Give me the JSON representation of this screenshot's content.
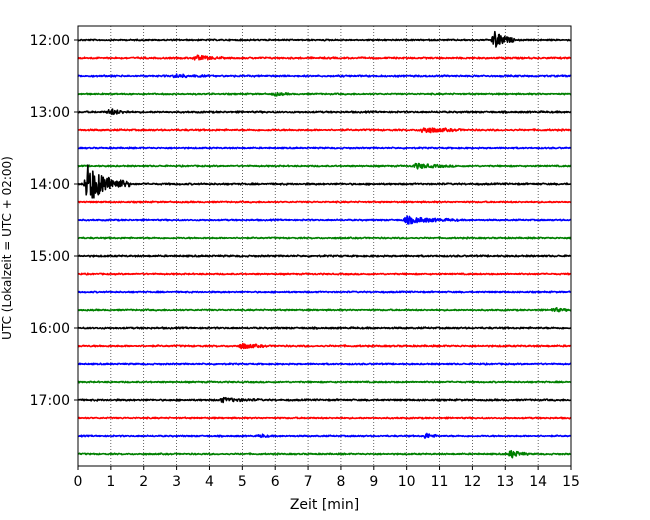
{
  "chart_data": {
    "type": "line",
    "title": "",
    "xlabel": "Zeit  [min]",
    "ylabel": "UTC (Lokalzeit = UTC + 02:00)",
    "xlim": [
      0,
      15
    ],
    "x_ticks": [
      "0",
      "1",
      "2",
      "3",
      "4",
      "5",
      "6",
      "7",
      "8",
      "9",
      "10",
      "11",
      "12",
      "13",
      "14",
      "15"
    ],
    "y_ticks": [
      "12:00",
      "13:00",
      "14:00",
      "15:00",
      "16:00",
      "17:00"
    ],
    "grid": "vertical dotted",
    "colors": [
      "#000000",
      "#ff0000",
      "#0000ff",
      "#008000"
    ],
    "rows": [
      {
        "utc": "12:00",
        "color": "#000000",
        "noise": 0.6,
        "events": [
          {
            "t": 12.7,
            "amp": 9,
            "dur": 0.6
          }
        ]
      },
      {
        "utc": "12:15",
        "color": "#ff0000",
        "noise": 0.7,
        "events": [
          {
            "t": 3.6,
            "amp": 2.5,
            "dur": 0.8
          }
        ]
      },
      {
        "utc": "12:30",
        "color": "#0000ff",
        "noise": 0.7,
        "events": [
          {
            "t": 3.0,
            "amp": 1.5,
            "dur": 1.0
          }
        ]
      },
      {
        "utc": "12:45",
        "color": "#008000",
        "noise": 0.6,
        "events": [
          {
            "t": 6.0,
            "amp": 1.5,
            "dur": 0.5
          }
        ]
      },
      {
        "utc": "13:00",
        "color": "#000000",
        "noise": 0.7,
        "events": [
          {
            "t": 1.0,
            "amp": 3,
            "dur": 0.6
          }
        ]
      },
      {
        "utc": "13:15",
        "color": "#ff0000",
        "noise": 0.7,
        "events": [
          {
            "t": 10.5,
            "amp": 3,
            "dur": 1.2
          }
        ]
      },
      {
        "utc": "13:30",
        "color": "#0000ff",
        "noise": 0.6,
        "events": []
      },
      {
        "utc": "13:45",
        "color": "#008000",
        "noise": 0.6,
        "events": [
          {
            "t": 10.3,
            "amp": 2.5,
            "dur": 1.2
          }
        ]
      },
      {
        "utc": "14:00",
        "color": "#000000",
        "noise": 0.7,
        "events": [
          {
            "t": 0.3,
            "amp": 19,
            "dur": 1.3
          }
        ]
      },
      {
        "utc": "14:15",
        "color": "#ff0000",
        "noise": 0.6,
        "events": []
      },
      {
        "utc": "14:30",
        "color": "#0000ff",
        "noise": 0.6,
        "events": [
          {
            "t": 10.0,
            "amp": 3.5,
            "dur": 1.6
          }
        ]
      },
      {
        "utc": "14:45",
        "color": "#008000",
        "noise": 0.6,
        "events": []
      },
      {
        "utc": "15:00",
        "color": "#000000",
        "noise": 0.7,
        "events": []
      },
      {
        "utc": "15:15",
        "color": "#ff0000",
        "noise": 0.6,
        "events": []
      },
      {
        "utc": "15:30",
        "color": "#0000ff",
        "noise": 0.6,
        "events": []
      },
      {
        "utc": "15:45",
        "color": "#008000",
        "noise": 0.6,
        "events": [
          {
            "t": 14.5,
            "amp": 2,
            "dur": 0.5
          }
        ]
      },
      {
        "utc": "16:00",
        "color": "#000000",
        "noise": 0.7,
        "events": []
      },
      {
        "utc": "16:15",
        "color": "#ff0000",
        "noise": 0.7,
        "events": [
          {
            "t": 5.0,
            "amp": 2.5,
            "dur": 0.8
          }
        ]
      },
      {
        "utc": "16:30",
        "color": "#0000ff",
        "noise": 0.6,
        "events": []
      },
      {
        "utc": "16:45",
        "color": "#008000",
        "noise": 0.6,
        "events": []
      },
      {
        "utc": "17:00",
        "color": "#000000",
        "noise": 0.7,
        "events": [
          {
            "t": 4.4,
            "amp": 2,
            "dur": 1.2
          }
        ]
      },
      {
        "utc": "17:15",
        "color": "#ff0000",
        "noise": 0.6,
        "events": []
      },
      {
        "utc": "17:30",
        "color": "#0000ff",
        "noise": 0.6,
        "events": [
          {
            "t": 10.6,
            "amp": 2.5,
            "dur": 0.4
          },
          {
            "t": 5.6,
            "amp": 1.5,
            "dur": 0.3
          }
        ]
      },
      {
        "utc": "17:45",
        "color": "#008000",
        "noise": 0.6,
        "events": [
          {
            "t": 13.2,
            "amp": 4,
            "dur": 0.5
          }
        ]
      }
    ]
  }
}
